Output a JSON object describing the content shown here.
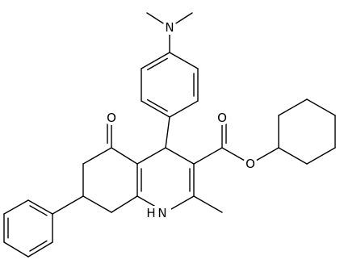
{
  "atoms": [
    {
      "label": "N"
    },
    {
      "label": "O"
    },
    {
      "label": "O"
    },
    {
      "label": "O"
    },
    {
      "label": "H"
    },
    {
      "label": "N"
    }
  ]
}
